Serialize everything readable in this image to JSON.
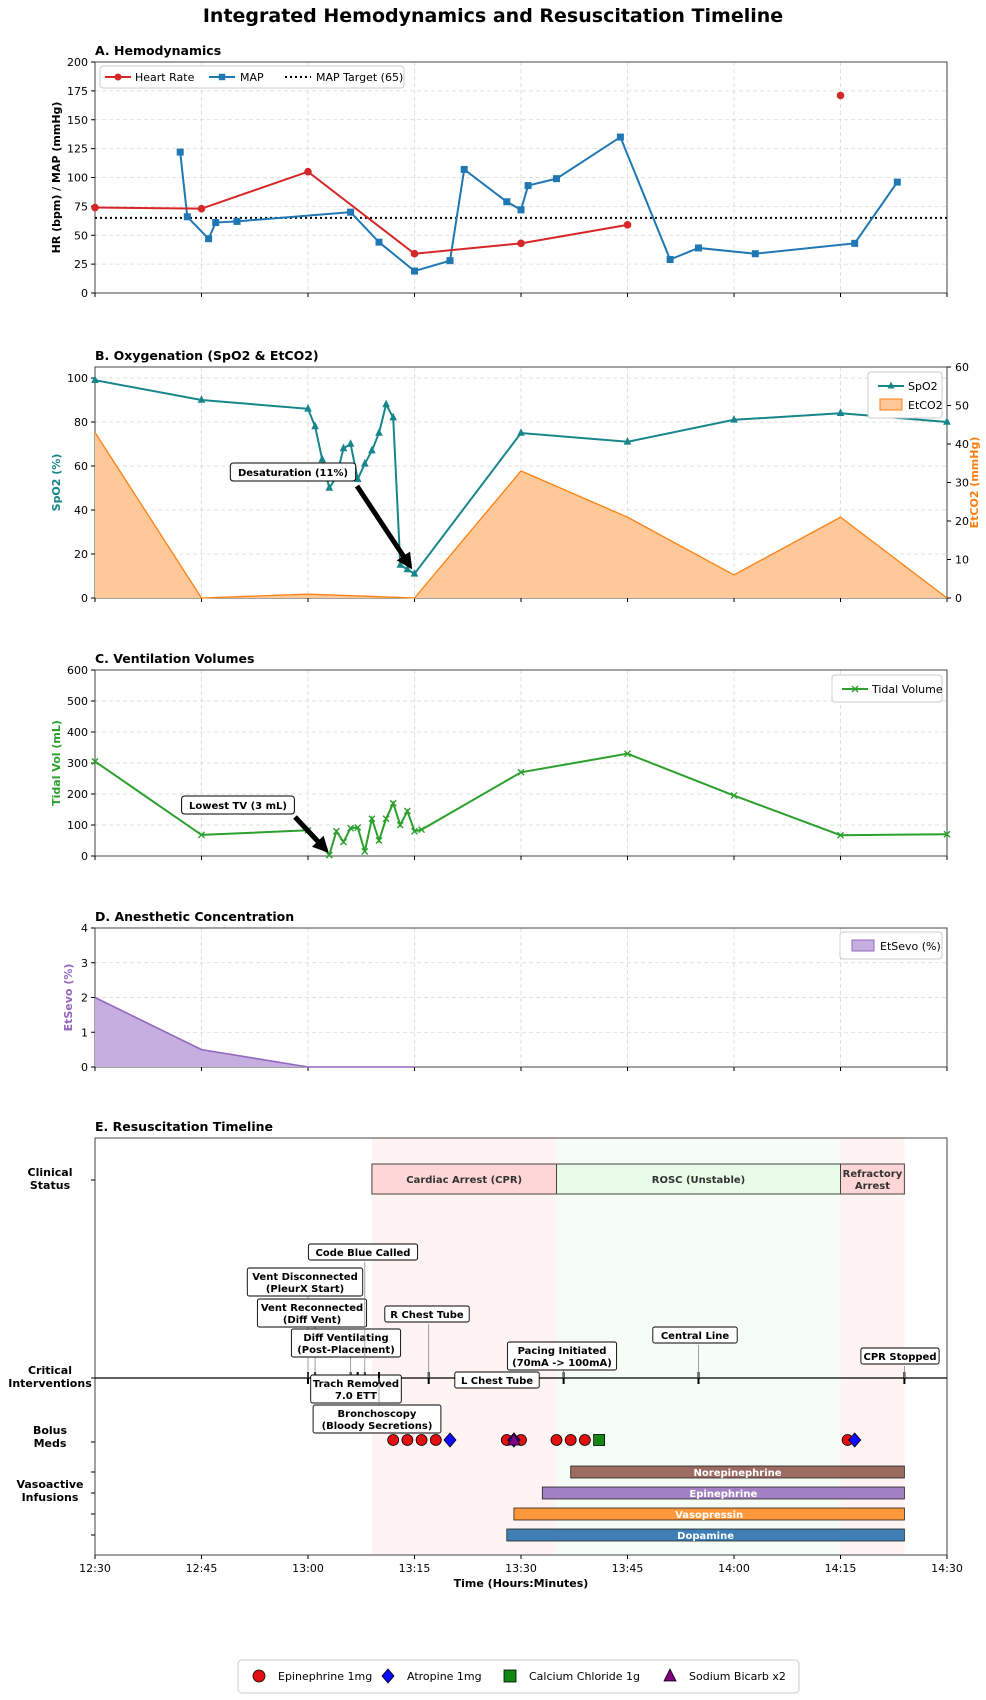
{
  "title": "Integrated Hemodynamics and Resuscitation Timeline",
  "colors": {
    "hr": "#d62728",
    "map": "#1f77b4",
    "spo2": "#17868a",
    "etco2": "#ff7f0e",
    "etco2_fill": "#ffc898",
    "tv": "#2ca02c",
    "sevo": "#9467bd",
    "sevo_fill": "#c5aee0",
    "arrest": "#ffd6d6",
    "rosc": "#e7fbe7"
  },
  "chart_data": [
    {
      "type": "line",
      "title": "A. Hemodynamics",
      "ylabel": "HR (bpm) / MAP (mmHg)",
      "ylim": [
        0,
        200
      ],
      "yticks": [
        0,
        25,
        50,
        75,
        100,
        125,
        150,
        175,
        200
      ],
      "grid": true,
      "legend": "top-left",
      "series": [
        {
          "name": "Heart Rate",
          "x": [
            "12:30",
            "12:45",
            "13:00",
            "13:15",
            "13:30",
            "13:45"
          ],
          "y": [
            74,
            73,
            105,
            34,
            43,
            59
          ],
          "marker": "circle"
        },
        {
          "name": "Heart Rate",
          "x": [
            "14:15"
          ],
          "y": [
            171
          ],
          "marker": "circle",
          "legend": false
        },
        {
          "name": "MAP",
          "x": [
            "12:42",
            "12:43",
            "12:46",
            "12:47",
            "12:50",
            "13:06",
            "13:10",
            "13:15",
            "13:20",
            "13:22",
            "13:28",
            "13:30",
            "13:31",
            "13:35",
            "13:44",
            "13:51",
            "13:55",
            "14:03",
            "14:17",
            "14:23"
          ],
          "y": [
            122,
            66,
            47,
            61,
            62,
            70,
            44,
            19,
            28,
            107,
            79,
            72,
            93,
            99,
            135,
            29,
            39,
            34,
            43,
            96
          ],
          "marker": "square"
        },
        {
          "name": "MAP Target (65)",
          "hline": 65,
          "style": "dotted"
        }
      ]
    },
    {
      "type": "line",
      "title": "B. Oxygenation (SpO2 & EtCO2)",
      "ylabel": "SpO2 (%)",
      "ylim": [
        0,
        105
      ],
      "yticks": [
        0,
        20,
        40,
        60,
        80,
        100
      ],
      "ylabel2": "EtCO2 (mmHg)",
      "ylim2": [
        0,
        60
      ],
      "yticks2": [
        0,
        10,
        20,
        30,
        40,
        50,
        60
      ],
      "grid": true,
      "legend": "top-right",
      "series": [
        {
          "name": "SpO2",
          "axis": "left",
          "marker": "triangle",
          "x": [
            "12:30",
            "12:45",
            "13:00",
            "13:01",
            "13:02",
            "13:03",
            "13:04",
            "13:05",
            "13:06",
            "13:07",
            "13:08",
            "13:09",
            "13:10",
            "13:11",
            "13:12",
            "13:13",
            "13:14",
            "13:15",
            "13:30",
            "13:45",
            "14:00",
            "14:15",
            "14:30"
          ],
          "y": [
            99,
            90,
            86,
            78,
            63,
            50,
            55,
            68,
            70,
            54,
            61,
            67,
            75,
            88,
            82,
            15,
            13,
            11,
            75,
            71,
            81,
            84,
            80
          ]
        },
        {
          "name": "EtCO2",
          "axis": "right",
          "type": "area",
          "x": [
            "12:30",
            "12:45",
            "13:00",
            "13:15",
            "13:30",
            "13:45",
            "14:00",
            "14:15",
            "14:30"
          ],
          "y": [
            43,
            0,
            1,
            0,
            33,
            21,
            6,
            21,
            0
          ]
        }
      ],
      "annotation": "Desaturation (11%)"
    },
    {
      "type": "line",
      "title": "C. Ventilation Volumes",
      "ylabel": "Tidal Vol (mL)",
      "ylim": [
        0,
        600
      ],
      "yticks": [
        0,
        100,
        200,
        300,
        400,
        500,
        600
      ],
      "grid": true,
      "legend": "top-right",
      "series": [
        {
          "name": "Tidal Volume",
          "marker": "x",
          "x": [
            "12:30",
            "12:45",
            "13:00",
            "13:03",
            "13:04",
            "13:05",
            "13:06",
            "13:07",
            "13:08",
            "13:09",
            "13:10",
            "13:11",
            "13:12",
            "13:13",
            "13:14",
            "13:15",
            "13:16",
            "13:30",
            "13:45",
            "14:00",
            "14:15",
            "14:30"
          ],
          "y": [
            305,
            68,
            83,
            3,
            80,
            45,
            90,
            92,
            15,
            120,
            50,
            120,
            170,
            100,
            145,
            80,
            85,
            270,
            330,
            195,
            67,
            70
          ]
        }
      ],
      "annotation": "Lowest TV (3 mL)"
    },
    {
      "type": "area",
      "title": "D. Anesthetic Concentration",
      "ylabel": "EtSevo (%)",
      "ylim": [
        0,
        4
      ],
      "yticks": [
        0,
        1,
        2,
        3,
        4
      ],
      "grid": true,
      "legend": "top-right",
      "series": [
        {
          "name": "EtSevo (%)",
          "x": [
            "12:30",
            "12:45",
            "13:00",
            "13:15"
          ],
          "y": [
            2.0,
            0.5,
            0.0,
            0.0
          ]
        }
      ]
    },
    {
      "type": "timeline",
      "title": "E. Resuscitation Timeline",
      "xlabel": "Time (Hours:Minutes)",
      "xlim": [
        "12:30",
        "14:30"
      ],
      "xticks": [
        "12:30",
        "12:45",
        "13:00",
        "13:15",
        "13:30",
        "13:45",
        "14:00",
        "14:15",
        "14:30"
      ],
      "rows": [
        {
          "label": "Clinical Status"
        },
        {
          "label": "Critical Interventions"
        },
        {
          "label": "Bolus Meds"
        },
        {
          "label": "Vasoactive Infusions"
        }
      ],
      "status": [
        {
          "label": "Cardiac Arrest (CPR)",
          "start": "13:09",
          "end": "13:35"
        },
        {
          "label": "ROSC (Unstable)",
          "start": "13:35",
          "end": "14:15"
        },
        {
          "label": "Refractory Arrest",
          "start": "14:15",
          "end": "14:24"
        }
      ],
      "interventions": [
        {
          "label": "Vent Disconnected (PleurX Start)",
          "time": "13:00"
        },
        {
          "label": "Vent Reconnected (Diff Vent)",
          "time": "13:01"
        },
        {
          "label": "Diff Ventilating (Post-Placement)",
          "time": "13:06"
        },
        {
          "label": "Code Blue Called",
          "time": "13:08"
        },
        {
          "label": "Trach Removed 7.0 ETT",
          "time": "13:07"
        },
        {
          "label": "Bronchoscopy (Bloody Secretions)",
          "time": "13:10"
        },
        {
          "label": "R Chest Tube",
          "time": "13:17"
        },
        {
          "label": "L Chest Tube",
          "time": "13:27"
        },
        {
          "label": "Pacing Initiated (70mA -> 100mA)",
          "time": "13:36"
        },
        {
          "label": "Central Line",
          "time": "13:55"
        },
        {
          "label": "CPR Stopped",
          "time": "14:24"
        }
      ],
      "bolus_meds": [
        {
          "name": "Epinephrine 1mg",
          "times": [
            "13:12",
            "13:14",
            "13:16",
            "13:18",
            "13:28",
            "13:30",
            "13:35",
            "13:37",
            "13:39",
            "14:16"
          ]
        },
        {
          "name": "Atropine 1mg",
          "times": [
            "13:20",
            "13:29",
            "14:17"
          ]
        },
        {
          "name": "Calcium Chloride 1g",
          "times": [
            "13:41"
          ]
        },
        {
          "name": "Sodium Bicarb x2",
          "times": [
            "13:29"
          ]
        }
      ],
      "infusions": [
        {
          "name": "Norepinephrine",
          "start": "13:37",
          "end": "14:24",
          "color": "#9c6b62"
        },
        {
          "name": "Epinephrine",
          "start": "13:33",
          "end": "14:24",
          "color": "#a37fc4"
        },
        {
          "name": "Vasopressin",
          "start": "13:29",
          "end": "14:24",
          "color": "#ff983a"
        },
        {
          "name": "Dopamine",
          "start": "13:28",
          "end": "14:24",
          "color": "#3f7fb5"
        }
      ]
    }
  ],
  "legend": [
    {
      "label": "Epinephrine 1mg",
      "shape": "circle",
      "color": "#e01010"
    },
    {
      "label": "Atropine 1mg",
      "shape": "diamond",
      "color": "#0a0aff"
    },
    {
      "label": "Calcium Chloride 1g",
      "shape": "square",
      "color": "#118811"
    },
    {
      "label": "Sodium Bicarb x2",
      "shape": "triangle",
      "color": "#800080"
    }
  ]
}
